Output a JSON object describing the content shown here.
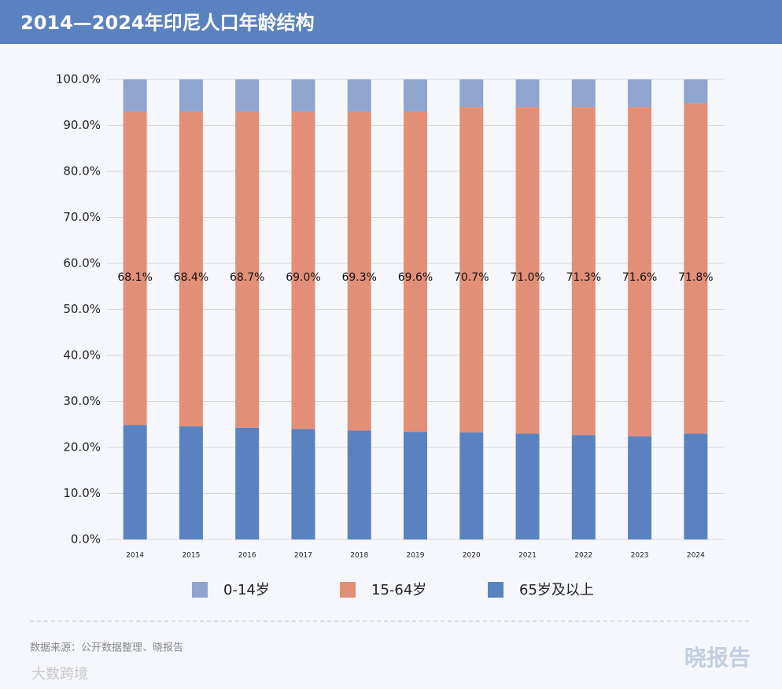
{
  "chart_data": {
    "type": "stacked_bar",
    "title": "2014—2024年印尼人口年龄结构",
    "categories": [
      "2014",
      "2015",
      "2016",
      "2017",
      "2018",
      "2019",
      "2020",
      "2021",
      "2022",
      "2023",
      "2024"
    ],
    "series": [
      {
        "name": "0-14岁",
        "color": "#8fa5d0",
        "values": [
          7.0,
          7.0,
          7.0,
          7.0,
          7.0,
          7.0,
          6.0,
          6.0,
          6.0,
          6.0,
          5.2
        ]
      },
      {
        "name": "15-64岁",
        "color": "#e38f78",
        "values": [
          68.1,
          68.4,
          68.7,
          69.0,
          69.3,
          69.6,
          70.7,
          71.0,
          71.3,
          71.6,
          71.8
        ],
        "value_labels": [
          "68.1%",
          "68.4%",
          "68.7%",
          "69.0%",
          "69.3%",
          "69.6%",
          "70.7%",
          "71.0%",
          "71.3%",
          "71.6%",
          "71.8%"
        ]
      },
      {
        "name": "65岁及以上",
        "color": "#5b82c0",
        "values": [
          24.9,
          24.6,
          24.3,
          24.0,
          23.7,
          23.4,
          23.3,
          23.0,
          22.7,
          22.4,
          23.0
        ]
      }
    ],
    "ylim": [
      0,
      100
    ],
    "yticks": [
      {
        "value": 0,
        "label": "0.0%"
      },
      {
        "value": 10,
        "label": "10.0%"
      },
      {
        "value": 20,
        "label": "20.0%"
      },
      {
        "value": 30,
        "label": "30.0%"
      },
      {
        "value": 40,
        "label": "40.0%"
      },
      {
        "value": 50,
        "label": "50.0%"
      },
      {
        "value": 60,
        "label": "60.0%"
      },
      {
        "value": 70,
        "label": "70.0%"
      },
      {
        "value": 80,
        "label": "80.0%"
      },
      {
        "value": 90,
        "label": "90.0%"
      },
      {
        "value": 100,
        "label": "100.0%"
      }
    ],
    "grid": true,
    "source": "数据来源：公开数据整理、晓报告",
    "brand": "晓报告",
    "watermark": "大数跨境"
  }
}
